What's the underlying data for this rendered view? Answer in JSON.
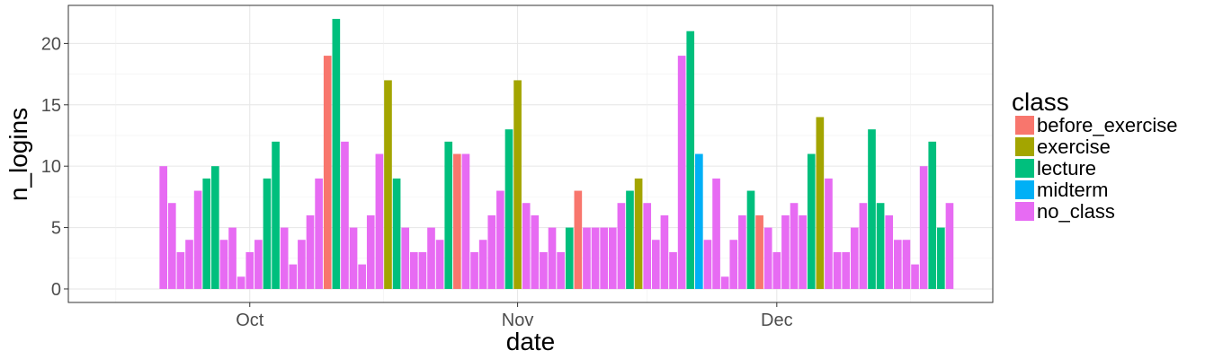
{
  "chart_data": {
    "type": "bar",
    "xlabel": "date",
    "ylabel": "n_logins",
    "ylim": [
      -1.1,
      23.1
    ],
    "yticks": [
      0,
      5,
      10,
      15,
      20
    ],
    "xlim": [
      "2016-09-10",
      "2016-12-26"
    ],
    "xticks": [
      {
        "date": "2016-10-01",
        "label": "Oct"
      },
      {
        "date": "2016-11-01",
        "label": "Nov"
      },
      {
        "date": "2016-12-01",
        "label": "Dec"
      }
    ],
    "grid": true,
    "legend": {
      "title": "class",
      "placement": "right",
      "entries": [
        {
          "name": "before_exercise",
          "color": "#f8766d"
        },
        {
          "name": "exercise",
          "color": "#a3a500"
        },
        {
          "name": "lecture",
          "color": "#00bf7d"
        },
        {
          "name": "midterm",
          "color": "#00b0f6"
        },
        {
          "name": "no_class",
          "color": "#e76bf3"
        }
      ]
    },
    "start_date": "2016-09-21",
    "points": [
      {
        "date": "2016-09-21",
        "n_logins": 10,
        "class": "no_class"
      },
      {
        "date": "2016-09-22",
        "n_logins": 7,
        "class": "no_class"
      },
      {
        "date": "2016-09-23",
        "n_logins": 3,
        "class": "no_class"
      },
      {
        "date": "2016-09-24",
        "n_logins": 4,
        "class": "no_class"
      },
      {
        "date": "2016-09-25",
        "n_logins": 8,
        "class": "no_class"
      },
      {
        "date": "2016-09-26",
        "n_logins": 9,
        "class": "lecture"
      },
      {
        "date": "2016-09-27",
        "n_logins": 10,
        "class": "lecture"
      },
      {
        "date": "2016-09-28",
        "n_logins": 4,
        "class": "no_class"
      },
      {
        "date": "2016-09-29",
        "n_logins": 5,
        "class": "no_class"
      },
      {
        "date": "2016-09-30",
        "n_logins": 1,
        "class": "no_class"
      },
      {
        "date": "2016-10-01",
        "n_logins": 3,
        "class": "no_class"
      },
      {
        "date": "2016-10-02",
        "n_logins": 4,
        "class": "no_class"
      },
      {
        "date": "2016-10-03",
        "n_logins": 9,
        "class": "lecture"
      },
      {
        "date": "2016-10-04",
        "n_logins": 12,
        "class": "lecture"
      },
      {
        "date": "2016-10-05",
        "n_logins": 5,
        "class": "no_class"
      },
      {
        "date": "2016-10-06",
        "n_logins": 2,
        "class": "no_class"
      },
      {
        "date": "2016-10-07",
        "n_logins": 4,
        "class": "no_class"
      },
      {
        "date": "2016-10-08",
        "n_logins": 6,
        "class": "no_class"
      },
      {
        "date": "2016-10-09",
        "n_logins": 9,
        "class": "no_class"
      },
      {
        "date": "2016-10-10",
        "n_logins": 19,
        "class": "before_exercise"
      },
      {
        "date": "2016-10-11",
        "n_logins": 22,
        "class": "lecture"
      },
      {
        "date": "2016-10-12",
        "n_logins": 12,
        "class": "no_class"
      },
      {
        "date": "2016-10-13",
        "n_logins": 5,
        "class": "no_class"
      },
      {
        "date": "2016-10-14",
        "n_logins": 2,
        "class": "no_class"
      },
      {
        "date": "2016-10-15",
        "n_logins": 6,
        "class": "no_class"
      },
      {
        "date": "2016-10-16",
        "n_logins": 11,
        "class": "no_class"
      },
      {
        "date": "2016-10-17",
        "n_logins": 17,
        "class": "exercise"
      },
      {
        "date": "2016-10-18",
        "n_logins": 9,
        "class": "lecture"
      },
      {
        "date": "2016-10-19",
        "n_logins": 5,
        "class": "no_class"
      },
      {
        "date": "2016-10-20",
        "n_logins": 3,
        "class": "no_class"
      },
      {
        "date": "2016-10-21",
        "n_logins": 3,
        "class": "no_class"
      },
      {
        "date": "2016-10-22",
        "n_logins": 5,
        "class": "no_class"
      },
      {
        "date": "2016-10-23",
        "n_logins": 4,
        "class": "no_class"
      },
      {
        "date": "2016-10-24",
        "n_logins": 12,
        "class": "lecture"
      },
      {
        "date": "2016-10-25",
        "n_logins": 11,
        "class": "before_exercise"
      },
      {
        "date": "2016-10-26",
        "n_logins": 11,
        "class": "no_class"
      },
      {
        "date": "2016-10-27",
        "n_logins": 3,
        "class": "no_class"
      },
      {
        "date": "2016-10-28",
        "n_logins": 4,
        "class": "no_class"
      },
      {
        "date": "2016-10-29",
        "n_logins": 6,
        "class": "no_class"
      },
      {
        "date": "2016-10-30",
        "n_logins": 8,
        "class": "no_class"
      },
      {
        "date": "2016-10-31",
        "n_logins": 13,
        "class": "lecture"
      },
      {
        "date": "2016-11-01",
        "n_logins": 17,
        "class": "exercise"
      },
      {
        "date": "2016-11-02",
        "n_logins": 7,
        "class": "no_class"
      },
      {
        "date": "2016-11-03",
        "n_logins": 6,
        "class": "no_class"
      },
      {
        "date": "2016-11-04",
        "n_logins": 3,
        "class": "no_class"
      },
      {
        "date": "2016-11-05",
        "n_logins": 5,
        "class": "no_class"
      },
      {
        "date": "2016-11-06",
        "n_logins": 3,
        "class": "no_class"
      },
      {
        "date": "2016-11-07",
        "n_logins": 5,
        "class": "lecture"
      },
      {
        "date": "2016-11-08",
        "n_logins": 8,
        "class": "before_exercise"
      },
      {
        "date": "2016-11-09",
        "n_logins": 5,
        "class": "no_class"
      },
      {
        "date": "2016-11-10",
        "n_logins": 5,
        "class": "no_class"
      },
      {
        "date": "2016-11-11",
        "n_logins": 5,
        "class": "no_class"
      },
      {
        "date": "2016-11-12",
        "n_logins": 5,
        "class": "no_class"
      },
      {
        "date": "2016-11-13",
        "n_logins": 7,
        "class": "no_class"
      },
      {
        "date": "2016-11-14",
        "n_logins": 8,
        "class": "lecture"
      },
      {
        "date": "2016-11-15",
        "n_logins": 9,
        "class": "exercise"
      },
      {
        "date": "2016-11-16",
        "n_logins": 7,
        "class": "no_class"
      },
      {
        "date": "2016-11-17",
        "n_logins": 4,
        "class": "no_class"
      },
      {
        "date": "2016-11-18",
        "n_logins": 6,
        "class": "no_class"
      },
      {
        "date": "2016-11-19",
        "n_logins": 3,
        "class": "no_class"
      },
      {
        "date": "2016-11-20",
        "n_logins": 19,
        "class": "no_class"
      },
      {
        "date": "2016-11-21",
        "n_logins": 21,
        "class": "lecture"
      },
      {
        "date": "2016-11-22",
        "n_logins": 11,
        "class": "midterm"
      },
      {
        "date": "2016-11-23",
        "n_logins": 4,
        "class": "no_class"
      },
      {
        "date": "2016-11-24",
        "n_logins": 9,
        "class": "no_class"
      },
      {
        "date": "2016-11-25",
        "n_logins": 1,
        "class": "no_class"
      },
      {
        "date": "2016-11-26",
        "n_logins": 4,
        "class": "no_class"
      },
      {
        "date": "2016-11-27",
        "n_logins": 6,
        "class": "no_class"
      },
      {
        "date": "2016-11-28",
        "n_logins": 8,
        "class": "lecture"
      },
      {
        "date": "2016-11-29",
        "n_logins": 6,
        "class": "before_exercise"
      },
      {
        "date": "2016-11-30",
        "n_logins": 5,
        "class": "no_class"
      },
      {
        "date": "2016-12-01",
        "n_logins": 3,
        "class": "no_class"
      },
      {
        "date": "2016-12-02",
        "n_logins": 6,
        "class": "no_class"
      },
      {
        "date": "2016-12-03",
        "n_logins": 7,
        "class": "no_class"
      },
      {
        "date": "2016-12-04",
        "n_logins": 6,
        "class": "no_class"
      },
      {
        "date": "2016-12-05",
        "n_logins": 11,
        "class": "lecture"
      },
      {
        "date": "2016-12-06",
        "n_logins": 14,
        "class": "exercise"
      },
      {
        "date": "2016-12-07",
        "n_logins": 9,
        "class": "no_class"
      },
      {
        "date": "2016-12-08",
        "n_logins": 3,
        "class": "no_class"
      },
      {
        "date": "2016-12-09",
        "n_logins": 3,
        "class": "no_class"
      },
      {
        "date": "2016-12-10",
        "n_logins": 5,
        "class": "no_class"
      },
      {
        "date": "2016-12-11",
        "n_logins": 7,
        "class": "no_class"
      },
      {
        "date": "2016-12-12",
        "n_logins": 13,
        "class": "lecture"
      },
      {
        "date": "2016-12-13",
        "n_logins": 7,
        "class": "lecture"
      },
      {
        "date": "2016-12-14",
        "n_logins": 6,
        "class": "no_class"
      },
      {
        "date": "2016-12-15",
        "n_logins": 4,
        "class": "no_class"
      },
      {
        "date": "2016-12-16",
        "n_logins": 4,
        "class": "no_class"
      },
      {
        "date": "2016-12-17",
        "n_logins": 2,
        "class": "no_class"
      },
      {
        "date": "2016-12-18",
        "n_logins": 10,
        "class": "no_class"
      },
      {
        "date": "2016-12-19",
        "n_logins": 12,
        "class": "lecture"
      },
      {
        "date": "2016-12-20",
        "n_logins": 5,
        "class": "lecture"
      },
      {
        "date": "2016-12-21",
        "n_logins": 7,
        "class": "no_class"
      }
    ]
  }
}
